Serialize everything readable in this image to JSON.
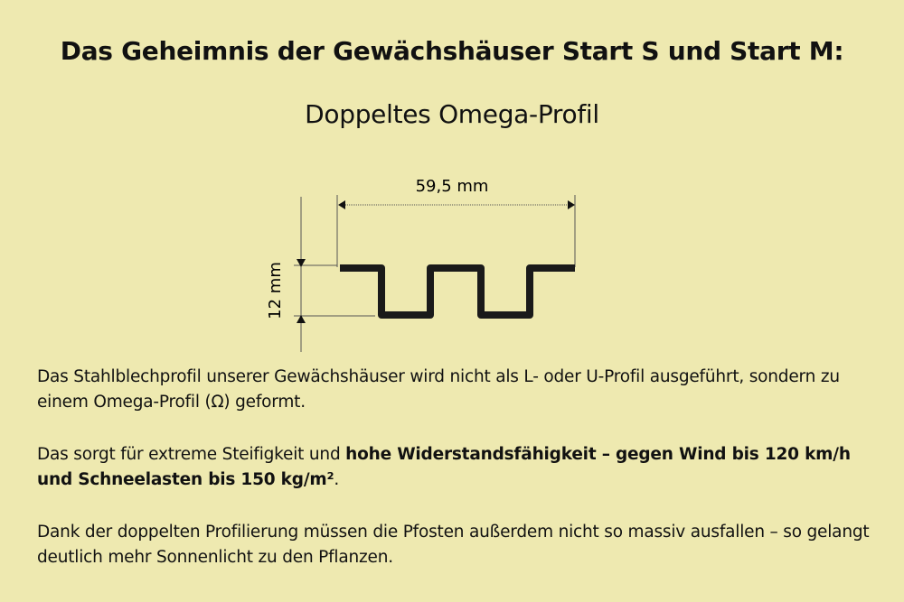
{
  "title": "Das Geheimnis der Gewächshäuser Start S und Start M:",
  "subtitle": "Doppeltes Omega-Profil",
  "diagram": {
    "width_label": "59,5 mm",
    "height_label": "12 mm"
  },
  "paragraphs": {
    "p1": "Das Stahlblechprofil unserer Gewächshäuser wird nicht als L- oder U-Profil ausgeführt, sondern zu einem Omega-Profil (Ω) geformt.",
    "p2_normal": "Das sorgt für extreme Steifigkeit und ",
    "p2_bold": "hohe Widerstandsfähigkeit – gegen Wind bis 120 km/h und Schneelasten bis 150 kg/m²",
    "p2_end": ".",
    "p3": "Dank der doppelten Profilierung müssen die Pfosten außerdem nicht so massiv ausfallen – so gelangt deutlich mehr Sonnenlicht zu den Pflanzen."
  },
  "colors": {
    "background": "#eee9b0",
    "profile": "#1a1a1a"
  }
}
